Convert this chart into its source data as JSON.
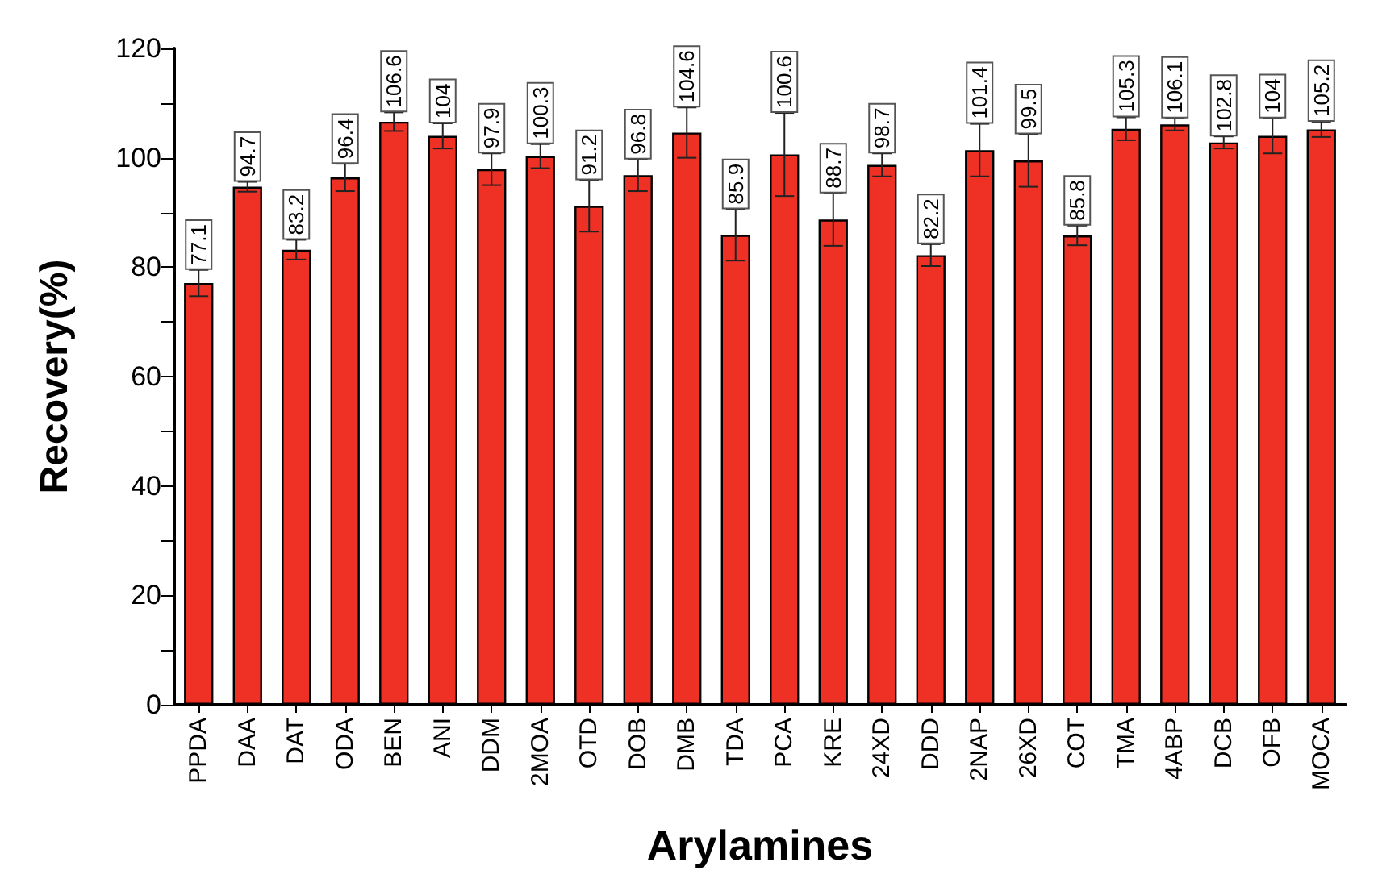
{
  "chart_data": {
    "type": "bar",
    "xlabel": "Arylamines",
    "ylabel": "Recovery(%)",
    "categories": [
      "PPDA",
      "DAA",
      "DAT",
      "ODA",
      "BEN",
      "ANI",
      "DDM",
      "2MOA",
      "OTD",
      "DOB",
      "DMB",
      "TDA",
      "PCA",
      "KRE",
      "24XD",
      "DDD",
      "2NAP",
      "26XD",
      "COT",
      "TMA",
      "4ABP",
      "DCB",
      "OFB",
      "MOCA"
    ],
    "values": [
      77.1,
      94.7,
      83.2,
      96.4,
      106.6,
      104,
      97.9,
      100.3,
      91.2,
      96.8,
      104.6,
      85.9,
      100.6,
      88.7,
      98.7,
      82.2,
      101.4,
      99.5,
      85.8,
      105.3,
      106.1,
      102.8,
      104,
      105.2
    ],
    "errors": [
      2.4,
      0.9,
      1.8,
      2.5,
      1.7,
      2.3,
      2.9,
      2.2,
      4.7,
      2.9,
      4.6,
      4.7,
      7.6,
      4.8,
      2.1,
      2,
      4.8,
      4.8,
      1.8,
      2.1,
      1.1,
      1.1,
      3.2,
      1.4
    ],
    "color": "#ee3124",
    "ylim": [
      0,
      120
    ],
    "yticks": [
      0,
      20,
      40,
      60,
      80,
      100,
      120
    ],
    "data_labels": true
  }
}
